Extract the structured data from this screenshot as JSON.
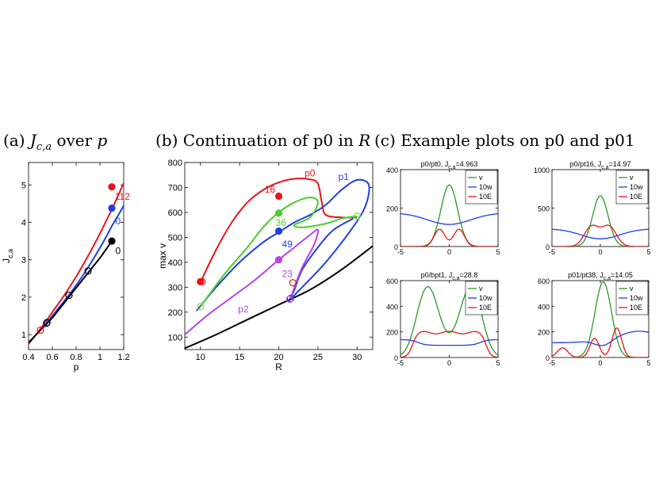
{
  "titles": {
    "a": "(a) ",
    "a_math": "J",
    "a_sub": "c,a",
    "a_rest": " over ",
    "a_var": "p",
    "b": "(b) Continuation of p0 in ",
    "b_var": "R",
    "c": "(c) Example plots on p0 and p01"
  },
  "colors": {
    "red": "#e8141a",
    "blue": "#1f3fe0",
    "black": "#000000",
    "green": "#4ccc2a",
    "purple": "#b844e8",
    "lgreen": "#7cdc3c"
  },
  "chart_data": [
    {
      "id": "a",
      "type": "line",
      "xlabel": "p",
      "ylabel": "J_{c,a}",
      "xlim": [
        0.4,
        1.2
      ],
      "ylim": [
        0.6,
        5.6
      ],
      "xticks": [
        0.4,
        0.6,
        0.8,
        1,
        1.2
      ],
      "yticks": [
        1,
        2,
        3,
        4,
        5
      ],
      "series": [
        {
          "color": "#e8141a",
          "points": [
            [
              0.4,
              0.75
            ],
            [
              0.5,
              1.15
            ],
            [
              0.6,
              1.6
            ],
            [
              0.7,
              2.05
            ],
            [
              0.8,
              2.55
            ],
            [
              0.9,
              3.1
            ],
            [
              1.0,
              3.7
            ],
            [
              1.1,
              4.35
            ],
            [
              1.2,
              5.05
            ],
            [
              1.25,
              5.4
            ]
          ]
        },
        {
          "color": "#1f3fe0",
          "points": [
            [
              0.55,
              1.3
            ],
            [
              0.65,
              1.7
            ],
            [
              0.75,
              2.1
            ],
            [
              0.85,
              2.55
            ],
            [
              0.95,
              3.05
            ],
            [
              1.05,
              3.6
            ],
            [
              1.1,
              3.9
            ],
            [
              1.2,
              4.45
            ],
            [
              1.25,
              4.8
            ]
          ]
        },
        {
          "color": "#000000",
          "points": [
            [
              0.38,
              0.72
            ],
            [
              0.5,
              1.12
            ],
            [
              0.6,
              1.45
            ],
            [
              0.7,
              1.85
            ],
            [
              0.8,
              2.25
            ],
            [
              0.9,
              2.65
            ],
            [
              1.0,
              3.05
            ],
            [
              1.1,
              3.5
            ]
          ]
        }
      ],
      "markers": [
        {
          "x": 0.5,
          "y": 1.12,
          "color": "#e8141a",
          "filled": false
        },
        {
          "x": 0.55,
          "y": 1.3,
          "color": "#1f3fe0",
          "filled": false
        },
        {
          "x": 0.555,
          "y": 1.32,
          "color": "#000000",
          "filled": false
        },
        {
          "x": 0.74,
          "y": 2.05,
          "color": "#000000",
          "filled": false
        },
        {
          "x": 0.9,
          "y": 2.7,
          "color": "#000000",
          "filled": false
        },
        {
          "x": 1.1,
          "y": 4.95,
          "color": "#e8141a",
          "filled": true
        },
        {
          "x": 1.1,
          "y": 4.38,
          "color": "#1f3fe0",
          "filled": true
        },
        {
          "x": 1.1,
          "y": 3.5,
          "color": "#000000",
          "filled": true
        }
      ],
      "labels": [
        {
          "text": "112",
          "x": 1.125,
          "y": 4.6,
          "color": "#e8141a"
        },
        {
          "text": "0",
          "x": 1.13,
          "y": 3.95,
          "color": "#1f3fe0"
        },
        {
          "text": "0",
          "x": 1.13,
          "y": 3.15,
          "color": "#000000"
        }
      ]
    },
    {
      "id": "b",
      "type": "line",
      "xlabel": "R",
      "ylabel": "max v",
      "xlim": [
        8,
        32
      ],
      "ylim": [
        50,
        800
      ],
      "xticks": [
        10,
        15,
        20,
        25,
        30
      ],
      "yticks": [
        100,
        200,
        300,
        400,
        500,
        600,
        700,
        800
      ],
      "series": [
        {
          "color": "#000000",
          "points": [
            [
              8,
              55
            ],
            [
              12,
              110
            ],
            [
              16,
              170
            ],
            [
              20,
              230
            ],
            [
              24,
              290
            ],
            [
              28,
              370
            ],
            [
              32,
              465
            ]
          ]
        },
        {
          "color": "#e8141a",
          "points": [
            [
              10,
              320
            ],
            [
              12,
              450
            ],
            [
              14,
              560
            ],
            [
              16,
              640
            ],
            [
              18,
              690
            ],
            [
              20,
              720
            ],
            [
              22,
              735
            ],
            [
              24,
              732
            ],
            [
              25,
              715
            ],
            [
              25.5,
              640
            ],
            [
              26,
              590
            ],
            [
              28,
              580
            ],
            [
              30,
              580
            ]
          ]
        },
        {
          "color": "#1f3fe0",
          "points": [
            [
              9.5,
              205
            ],
            [
              12,
              300
            ],
            [
              15,
              400
            ],
            [
              18,
              480
            ],
            [
              20,
              520
            ],
            [
              22,
              560
            ],
            [
              24,
              590
            ],
            [
              26,
              630
            ],
            [
              28,
              690
            ],
            [
              30,
              730
            ],
            [
              31.5,
              710
            ],
            [
              31,
              620
            ],
            [
              29,
              520
            ],
            [
              26,
              400
            ],
            [
              23,
              300
            ],
            [
              21.5,
              255
            ],
            [
              22,
              290
            ],
            [
              23,
              370
            ],
            [
              25,
              460
            ],
            [
              27,
              530
            ],
            [
              29.5,
              575
            ]
          ]
        },
        {
          "color": "#4ccc2a",
          "points": [
            [
              10,
              222
            ],
            [
              13,
              350
            ],
            [
              16,
              460
            ],
            [
              18,
              540
            ],
            [
              20,
              600
            ],
            [
              22,
              640
            ],
            [
              24,
              660
            ],
            [
              25,
              640
            ],
            [
              24,
              580
            ],
            [
              22,
              550
            ],
            [
              23,
              540
            ],
            [
              26,
              555
            ],
            [
              28,
              575
            ],
            [
              30,
              585
            ]
          ]
        },
        {
          "color": "#b844e8",
          "points": [
            [
              8,
              110
            ],
            [
              11,
              190
            ],
            [
              14,
              260
            ],
            [
              17,
              330
            ],
            [
              20,
              410
            ],
            [
              22,
              460
            ],
            [
              24,
              510
            ],
            [
              25,
              530
            ],
            [
              24.5,
              470
            ],
            [
              23,
              380
            ],
            [
              22,
              300
            ],
            [
              21.5,
              255
            ]
          ]
        }
      ],
      "markers": [
        {
          "x": 10,
          "y": 322,
          "color": "#e8141a",
          "filled": true
        },
        {
          "x": 10.2,
          "y": 322,
          "color": "#e8141a",
          "filled": false
        },
        {
          "x": 20,
          "y": 665,
          "color": "#e8141a",
          "filled": true
        },
        {
          "x": 20,
          "y": 597,
          "color": "#4ccc2a",
          "filled": true
        },
        {
          "x": 20,
          "y": 525,
          "color": "#1f3fe0",
          "filled": true
        },
        {
          "x": 20,
          "y": 410,
          "color": "#b844e8",
          "filled": true
        },
        {
          "x": 10,
          "y": 222,
          "color": "#7cdc3c",
          "filled": false
        },
        {
          "x": 21.8,
          "y": 318,
          "color": "#e8141a",
          "filled": false
        },
        {
          "x": 21.5,
          "y": 255,
          "color": "#1f3fe0",
          "filled": false
        },
        {
          "x": 21.4,
          "y": 252,
          "color": "#b844e8",
          "filled": false
        },
        {
          "x": 30,
          "y": 585,
          "color": "#7cdc3c",
          "filled": false
        }
      ],
      "labels": [
        {
          "text": "p0",
          "x": 23.3,
          "y": 745,
          "color": "#e8141a"
        },
        {
          "text": "p1",
          "x": 27.6,
          "y": 730,
          "color": "#1f3fe0"
        },
        {
          "text": "16",
          "x": 18.2,
          "y": 680,
          "color": "#e8141a"
        },
        {
          "text": "36",
          "x": 19.6,
          "y": 545,
          "color": "#4ccc2a"
        },
        {
          "text": "49",
          "x": 20.4,
          "y": 460,
          "color": "#1f3fe0"
        },
        {
          "text": "23",
          "x": 20.4,
          "y": 340,
          "color": "#b844e8"
        },
        {
          "text": "p2",
          "x": 14.8,
          "y": 200,
          "color": "#b844e8"
        }
      ]
    },
    {
      "id": "c1",
      "type": "line",
      "title": "p0/pt0, J",
      "title_sub": "c,a",
      "title_val": "=4.963",
      "xlim": [
        -5,
        5
      ],
      "ylim": [
        0,
        400
      ],
      "xticks": [
        -5,
        0,
        5
      ],
      "yticks": [
        0,
        200,
        400
      ],
      "legend": [
        "v",
        "10w",
        "10E"
      ],
      "series": [
        {
          "name": "v",
          "color": "#2a9a2a",
          "fn": "gauss",
          "a": 320,
          "mu": 0,
          "s": 0.85,
          "base": 0
        },
        {
          "name": "10w",
          "color": "#1f3fe0",
          "fn": "dip",
          "a": 175,
          "mu": 0,
          "depth": 60,
          "s": 2.2
        },
        {
          "name": "10E",
          "color": "#e8141a",
          "fn": "double",
          "a": 90,
          "mu1": -1,
          "mu2": 1,
          "s": 0.55
        }
      ]
    },
    {
      "id": "c2",
      "type": "line",
      "title": "p0/pt16, J",
      "title_sub": "c,a",
      "title_val": "=14.97",
      "xlim": [
        -5,
        5
      ],
      "ylim": [
        0,
        1000
      ],
      "xticks": [
        -5,
        0,
        5
      ],
      "yticks": [
        0,
        500,
        1000
      ],
      "legend": [
        "v",
        "10w",
        "10E"
      ],
      "series": [
        {
          "name": "v",
          "color": "#2a9a2a",
          "fn": "gauss",
          "a": 660,
          "mu": 0,
          "s": 0.8,
          "base": 0
        },
        {
          "name": "10w",
          "color": "#1f3fe0",
          "fn": "dip",
          "a": 230,
          "mu": 0,
          "depth": 130,
          "s": 2.0
        },
        {
          "name": "10E",
          "color": "#e8141a",
          "fn": "double",
          "a": 260,
          "mu1": -0.9,
          "mu2": 0.9,
          "s": 0.75
        }
      ]
    },
    {
      "id": "c3",
      "type": "line",
      "title": "p0/bpt1, J",
      "title_sub": "c,a",
      "title_val": "=28.8",
      "xlim": [
        -5,
        5
      ],
      "ylim": [
        0,
        600
      ],
      "xticks": [
        -5,
        0,
        5
      ],
      "yticks": [
        0,
        200,
        400,
        600
      ],
      "legend": [
        "v",
        "10w",
        "10E"
      ],
      "series": [
        {
          "name": "v",
          "color": "#2a9a2a",
          "fn": "twohump",
          "a": 580,
          "mu1": -2.2,
          "mu2": 2.2,
          "s": 1.1,
          "mid": 410
        },
        {
          "name": "10w",
          "color": "#1f3fe0",
          "fn": "flatdip",
          "a": 140,
          "depth": 45,
          "w": 3.2
        },
        {
          "name": "10E",
          "color": "#e8141a",
          "fn": "plateau",
          "a": 195,
          "w": 3.8
        }
      ]
    },
    {
      "id": "c4",
      "type": "line",
      "title": "p01/pt38, J",
      "title_sub": "c,a",
      "title_val": "=14.05",
      "xlim": [
        -5,
        5
      ],
      "ylim": [
        0,
        600
      ],
      "xticks": [
        -5,
        0,
        5
      ],
      "yticks": [
        0,
        200,
        400,
        600
      ],
      "legend": [
        "v",
        "10w",
        "10E"
      ],
      "series": [
        {
          "name": "v",
          "color": "#2a9a2a",
          "fn": "gauss",
          "a": 590,
          "mu": 0.3,
          "s": 0.85,
          "base": 0
        },
        {
          "name": "10w",
          "color": "#1f3fe0",
          "fn": "asym",
          "a": 165,
          "mu": 0.3,
          "depth": 60
        },
        {
          "name": "10E",
          "color": "#e8141a",
          "fn": "asymE",
          "a": 230
        }
      ]
    }
  ]
}
